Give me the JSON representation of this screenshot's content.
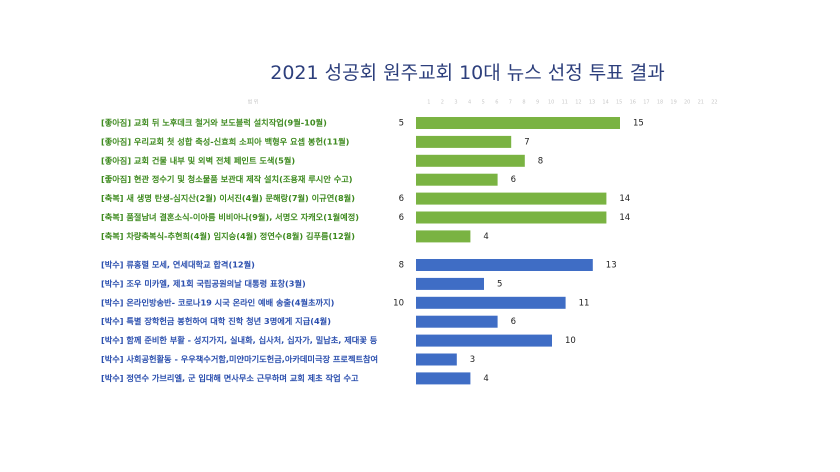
{
  "title": "2021 성공회 원주교회 10대 뉴스 선정 투표 결과",
  "colors": {
    "green": "#7ab342",
    "blue": "#3f6dc5",
    "green_text": "#3e8a1f",
    "blue_text": "#2b4fae",
    "title": "#2d3f7c"
  },
  "chart_data": {
    "type": "bar",
    "orientation": "horizontal",
    "title": "2021 성공회 원주교회 10대 뉴스 선정 투표 결과",
    "xlim": [
      0,
      22
    ],
    "top_axis_label": "범 위",
    "tick_labels": [
      "1",
      "2",
      "3",
      "4",
      "5",
      "6",
      "7",
      "8",
      "9",
      "10",
      "11",
      "12",
      "13",
      "14",
      "15",
      "16",
      "17",
      "18",
      "19",
      "20",
      "21",
      "22"
    ],
    "series": [
      {
        "color": "green",
        "items": [
          {
            "label": "[좋아짐] 교회 뒤 노후데크 철거와 보도블럭 설치작업(9월-10월)",
            "start": 5,
            "value": 15
          },
          {
            "label": "[좋아짐] 우리교회 첫 성합 축성-신효희 소피아 백형우 요셉 봉헌(11월)",
            "start": null,
            "value": 7
          },
          {
            "label": "[좋아짐] 교회 건물 내부 및 외벽 전체 페인트 도색(5월)",
            "start": null,
            "value": 8
          },
          {
            "label": "[좋아짐] 현관 정수기 및 청소물품 보관대 제작 설치(조용재 루시안 수고)",
            "start": null,
            "value": 6
          },
          {
            "label": "[축복] 새 생명 탄생-심지산(2월) 이서진(4월) 문해랑(7월) 이규연(8월)",
            "start": 6,
            "value": 14
          },
          {
            "label": "[축복] 품절남녀 결혼소식-이아름 비비아나(9월), 서명오 자캐오(1월예정)",
            "start": 6,
            "value": 14
          },
          {
            "label": "[축복] 차량축복식-추현희(4월) 임지승(4월) 정연수(8월) 김푸름(12월)",
            "start": null,
            "value": 4
          }
        ]
      },
      {
        "color": "blue",
        "items": [
          {
            "label": "[박수] 류홍렬 모세, 연세대학교 합격(12월)",
            "start": 8,
            "value": 13
          },
          {
            "label": "[박수] 조우 미카엘, 제1회 국립공원의날 대통령 표창(3월)",
            "start": null,
            "value": 5
          },
          {
            "label": "[박수] 온라인방송반- 코로나19 시국 온라인 예배 송출(4월초까지)",
            "start": 10,
            "value": 11
          },
          {
            "label": "[박수] 특별 장학헌금 봉헌하여 대학 진학 청년 3명에게 지급(4월)",
            "start": null,
            "value": 6
          },
          {
            "label": "[박수] 함께 준비한 부활 - 성지가지, 실내화, 십사처, 십자가, 밀납초, 제대꽃 등",
            "start": null,
            "value": 10
          },
          {
            "label": "[박수] 사회공헌활동 - 우우책수거함,미얀마기도헌금,아카데미극장 프로젝트참여",
            "start": null,
            "value": 3
          },
          {
            "label": "[박수]  정연수 가브리엘, 군 입대해 면사무소 근무하며 교회 제초 작업 수고",
            "start": null,
            "value": 4
          }
        ]
      }
    ]
  }
}
